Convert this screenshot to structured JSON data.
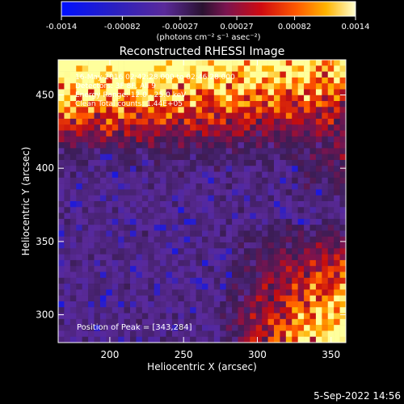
{
  "chart_data": {
    "type": "heatmap",
    "title": "Reconstructed RHESSI Image",
    "xlabel": "Heliocentric X (arcsec)",
    "ylabel": "Heliocentric Y (arcsec)",
    "xlim": [
      165,
      360
    ],
    "ylim": [
      281,
      474
    ],
    "x_ticks": [
      "200",
      "250",
      "300",
      "350"
    ],
    "y_ticks": [
      "300",
      "350",
      "400",
      "450"
    ],
    "colorbar": {
      "ticks": [
        "-0.0014",
        "-0.00082",
        "-0.00027",
        "0.00027",
        "0.00082",
        "0.0014"
      ],
      "range": [
        -0.0014,
        0.0014
      ],
      "unit_label": "(photons cm⁻² s⁻¹ asec⁻²)"
    },
    "annotations": {
      "time": "16-May-2016 02:42:28.000 to 02:46:28.000",
      "detectors": "Detectors: 3F 8F, All 9",
      "energy": "Energy Range: 12.0 - 25.0 keV",
      "clean": "Clean     Total counts: 1.44E+05",
      "peak": "Position of Peak = [343,284]"
    },
    "peak": {
      "x": 343,
      "y": 284
    },
    "colormap": [
      "#0010ff",
      "#3a22b8",
      "#5a2a9a",
      "#3b1d55",
      "#7a1450",
      "#c40d10",
      "#ff5200",
      "#ffb000",
      "#ffff9c"
    ]
  },
  "footer": {
    "timestamp": "5-Sep-2022 14:56"
  }
}
